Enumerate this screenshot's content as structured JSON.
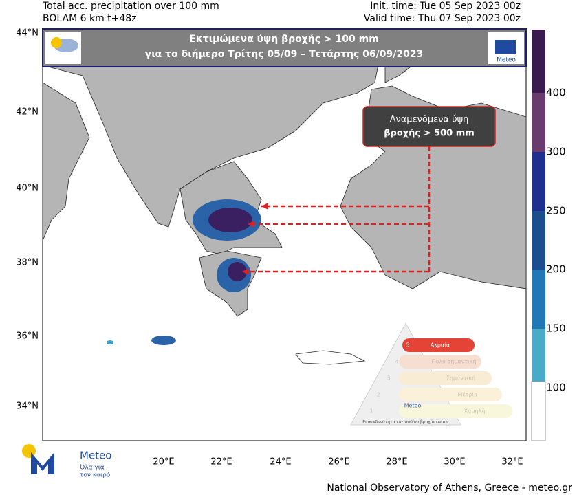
{
  "header": {
    "title_line1": "Total acc. precipitation over 100 mm",
    "title_line2": "BOLAM 6 km t+48z",
    "init_time": "Init. time: Tue 05 Sep 2023 00z",
    "valid_time": "Valid time: Thu 07 Sep 2023 00z"
  },
  "banner": {
    "line1": "Εκτιμώμενα ύψη βροχής > 100 mm",
    "line2": "για το διήμερο Τρίτης 05/09 – Τετάρτης 06/09/2023",
    "logo": "Meteo"
  },
  "callout": {
    "line1": "Αναμενόμενα ύψη",
    "line2": "βροχής > 500 mm"
  },
  "map": {
    "lat_labels": [
      "44°N",
      "42°N",
      "40°N",
      "38°N",
      "36°N",
      "34°N"
    ],
    "lon_labels": [
      "20°E",
      "22°E",
      "24°E",
      "26°E",
      "28°E",
      "30°E",
      "32°E"
    ]
  },
  "colorbar": {
    "labels": [
      100,
      150,
      200,
      250,
      300,
      400
    ]
  },
  "warning_scale": {
    "levels": [
      {
        "number": "5",
        "label": "Ακραία"
      },
      {
        "number": "4",
        "label": "Πολύ σημαντική"
      },
      {
        "number": "3",
        "label": "Σημαντική"
      },
      {
        "number": "2",
        "label": "Μέτρια"
      },
      {
        "number": "1",
        "label": "Χαμηλή"
      }
    ],
    "brand": "Meteo",
    "caption": "Επικινδυνότητα επεισοδίου βροχόπτωσης"
  },
  "logo": {
    "brand": "Meteo",
    "tagline_line1": "Όλα για",
    "tagline_line2": "τον καιρό"
  },
  "footer": "National Observatory of Athens, Greece - meteo.gr"
}
